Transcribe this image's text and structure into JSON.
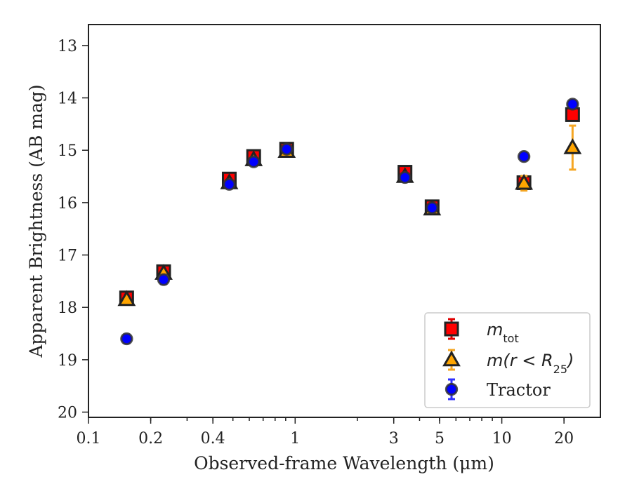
{
  "chart_data": {
    "type": "scatter",
    "title": "",
    "xlabel": "Observed-frame Wavelength (μm)",
    "ylabel": "Apparent Brightness (AB mag)",
    "xscale": "log",
    "xlim": [
      0.1,
      30
    ],
    "ylim": [
      20.1,
      12.6
    ],
    "y_inverted": true,
    "xticks": [
      {
        "value": 0.1,
        "label": "0.1"
      },
      {
        "value": 0.2,
        "label": "0.2"
      },
      {
        "value": 0.4,
        "label": "0.4"
      },
      {
        "value": 1,
        "label": "1"
      },
      {
        "value": 3,
        "label": "3"
      },
      {
        "value": 5,
        "label": "5"
      },
      {
        "value": 10,
        "label": "10"
      },
      {
        "value": 20,
        "label": "20"
      }
    ],
    "yticks": [
      {
        "value": 13,
        "label": "13"
      },
      {
        "value": 14,
        "label": "14"
      },
      {
        "value": 15,
        "label": "15"
      },
      {
        "value": 16,
        "label": "16"
      },
      {
        "value": 17,
        "label": "17"
      },
      {
        "value": 18,
        "label": "18"
      },
      {
        "value": 19,
        "label": "19"
      },
      {
        "value": 20,
        "label": "20"
      }
    ],
    "legend_position": "lower-right",
    "series": [
      {
        "key": "mtot",
        "label_main": "m",
        "label_sub": "tot",
        "marker": "square",
        "face_color": "#ff0000",
        "edge_color": "#222222",
        "error_color": "#e00000",
        "points": [
          {
            "x": 0.153,
            "y": 17.82,
            "err": 0.05
          },
          {
            "x": 0.231,
            "y": 17.32,
            "err": 0.05
          },
          {
            "x": 0.48,
            "y": 15.55,
            "err": 0.05
          },
          {
            "x": 0.63,
            "y": 15.12,
            "err": 0.05
          },
          {
            "x": 0.91,
            "y": 14.98,
            "err": 0.05
          },
          {
            "x": 3.4,
            "y": 15.42,
            "err": 0.05
          },
          {
            "x": 4.6,
            "y": 16.08,
            "err": 0.05
          },
          {
            "x": 12.8,
            "y": 15.62,
            "err": 0.08
          },
          {
            "x": 22.0,
            "y": 14.32,
            "err": 0.05
          }
        ]
      },
      {
        "key": "mr25",
        "label_main": "m(r < R",
        "label_sub": "25",
        "label_tail": ")",
        "marker": "triangle",
        "face_color": "#ffa500",
        "edge_color": "#222222",
        "error_color": "#f5a623",
        "points": [
          {
            "x": 0.153,
            "y": 17.85,
            "err": 0.05
          },
          {
            "x": 0.231,
            "y": 17.35,
            "err": 0.05
          },
          {
            "x": 0.48,
            "y": 15.62,
            "err": 0.05
          },
          {
            "x": 0.63,
            "y": 15.18,
            "err": 0.05
          },
          {
            "x": 0.91,
            "y": 15.02,
            "err": 0.05
          },
          {
            "x": 3.4,
            "y": 15.5,
            "err": 0.05
          },
          {
            "x": 4.6,
            "y": 16.12,
            "err": 0.05
          },
          {
            "x": 12.8,
            "y": 15.63,
            "err": 0.14
          },
          {
            "x": 22.0,
            "y": 14.95,
            "err": 0.42
          }
        ]
      },
      {
        "key": "tractor",
        "label_main": "Tractor",
        "marker": "circle",
        "face_color": "#0000ff",
        "edge_color": "#333333",
        "error_color": "#3030ff",
        "points": [
          {
            "x": 0.153,
            "y": 18.6,
            "err": 0.08
          },
          {
            "x": 0.231,
            "y": 17.47,
            "err": 0.08
          },
          {
            "x": 0.48,
            "y": 15.65,
            "err": 0.05
          },
          {
            "x": 0.63,
            "y": 15.22,
            "err": 0.05
          },
          {
            "x": 0.91,
            "y": 14.98,
            "err": 0.05
          },
          {
            "x": 3.4,
            "y": 15.52,
            "err": 0.05
          },
          {
            "x": 4.6,
            "y": 16.1,
            "err": 0.05
          },
          {
            "x": 12.8,
            "y": 15.12,
            "err": 0.06
          },
          {
            "x": 22.0,
            "y": 14.12,
            "err": 0.05
          }
        ]
      }
    ]
  }
}
